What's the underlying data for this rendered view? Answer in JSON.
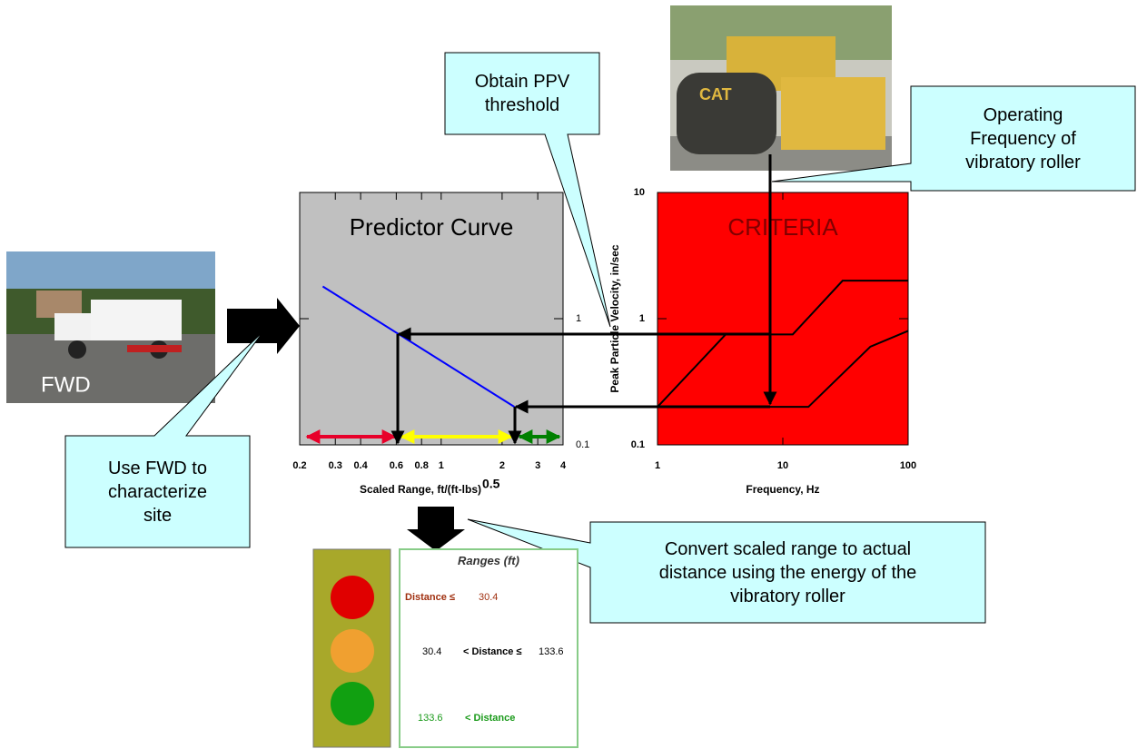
{
  "chart_data": [
    {
      "type": "line",
      "title": "Predictor Curve",
      "title_color": "#000000",
      "x_label": "Scaled Range, ft/(ft-lbs)",
      "x_label_exponent": "0.5",
      "log_x": true,
      "log_y": true,
      "background": "#c0c0c0",
      "xlim": [
        0.2,
        4
      ],
      "ylim": [
        0.1,
        10
      ],
      "xticks": [
        0.2,
        0.3,
        0.4,
        0.6,
        0.8,
        1,
        2,
        3,
        4
      ],
      "yticks": [
        0.1,
        1
      ],
      "series": [
        {
          "color": "#0000ff",
          "x": [
            0.26,
            2.3
          ],
          "values": [
            1.8,
            0.2
          ]
        }
      ]
    },
    {
      "type": "line",
      "title": "CRITERIA",
      "title_color": "#800000",
      "x_label": "Frequency, Hz",
      "y_label": "Peak Particle Velocity, in/sec",
      "log_x": true,
      "log_y": true,
      "background": "#ff0000",
      "xlim": [
        1,
        100
      ],
      "ylim": [
        0.1,
        10
      ],
      "xticks": [
        1,
        10,
        100
      ],
      "yticks": [
        0.1,
        1,
        10
      ],
      "series": [
        {
          "color": "#000000",
          "x": [
            1,
            3.5,
            12,
            30,
            100
          ],
          "values": [
            0.2,
            0.75,
            0.75,
            2,
            2
          ]
        },
        {
          "color": "#000000",
          "x": [
            1,
            16,
            50,
            100
          ],
          "values": [
            0.2,
            0.2,
            0.6,
            0.8
          ]
        }
      ]
    }
  ],
  "fwd_photo": {
    "label": "FWD"
  },
  "callouts": [
    {
      "lines": [
        "Obtain PPV",
        "threshold"
      ]
    },
    {
      "lines": [
        "Operating",
        "Frequency of",
        "vibratory roller"
      ]
    },
    {
      "lines": [
        "Use FWD to",
        "characterize",
        "site"
      ]
    },
    {
      "lines": [
        "Convert scaled range to actual",
        "distance using the energy of the",
        "vibratory roller"
      ]
    }
  ],
  "ranges_table": {
    "title": "Ranges (ft)",
    "rows": [
      [
        "Distance ≤",
        "30.4"
      ],
      [
        "30.4",
        "< Distance ≤",
        "133.6"
      ],
      [
        "133.6",
        "< Distance"
      ]
    ]
  }
}
